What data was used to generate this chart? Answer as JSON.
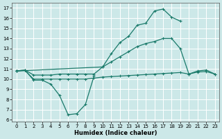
{
  "xlabel": "Humidex (Indice chaleur)",
  "background_color": "#cce8e8",
  "grid_color": "#b0d8d8",
  "line_color": "#1a7a6a",
  "xlim": [
    -0.5,
    23.5
  ],
  "ylim": [
    5.8,
    17.5
  ],
  "xticks": [
    0,
    1,
    2,
    3,
    4,
    5,
    6,
    7,
    8,
    9,
    10,
    11,
    12,
    13,
    14,
    15,
    16,
    17,
    18,
    19,
    20,
    21,
    22,
    23
  ],
  "yticks": [
    6,
    7,
    8,
    9,
    10,
    11,
    12,
    13,
    14,
    15,
    16,
    17
  ],
  "line1_x": [
    0,
    1,
    2,
    3,
    4,
    5,
    6,
    7,
    8,
    9
  ],
  "line1_y": [
    10.8,
    10.9,
    9.9,
    9.9,
    9.5,
    8.4,
    6.5,
    6.6,
    7.5,
    10.3
  ],
  "line2_x": [
    0,
    1,
    2,
    3,
    4,
    5,
    6,
    7,
    8,
    9,
    10,
    11,
    12,
    13,
    14,
    15,
    16,
    17,
    18,
    19,
    20,
    21,
    22,
    23
  ],
  "line2_y": [
    10.8,
    10.85,
    10.0,
    10.0,
    10.0,
    10.0,
    10.0,
    10.0,
    10.0,
    10.1,
    10.2,
    10.25,
    10.3,
    10.35,
    10.4,
    10.45,
    10.5,
    10.55,
    10.6,
    10.65,
    10.5,
    10.7,
    10.75,
    10.5
  ],
  "line3_x": [
    0,
    1,
    2,
    3,
    4,
    5,
    6,
    7,
    8,
    9,
    10,
    11,
    12,
    13,
    14,
    15,
    16,
    17,
    18,
    19,
    20,
    21,
    22,
    23
  ],
  "line3_y": [
    10.8,
    10.9,
    10.4,
    10.4,
    10.4,
    10.5,
    10.5,
    10.5,
    10.5,
    10.5,
    11.2,
    11.7,
    12.2,
    12.7,
    13.2,
    13.5,
    13.7,
    14.0,
    14.0,
    13.0,
    10.5,
    10.8,
    10.9,
    10.5
  ],
  "line4_x": [
    0,
    10,
    11,
    12,
    13,
    14,
    15,
    16,
    17,
    18,
    19
  ],
  "line4_y": [
    10.8,
    11.2,
    12.5,
    13.6,
    14.2,
    15.3,
    15.5,
    16.7,
    16.9,
    16.1,
    15.7
  ]
}
